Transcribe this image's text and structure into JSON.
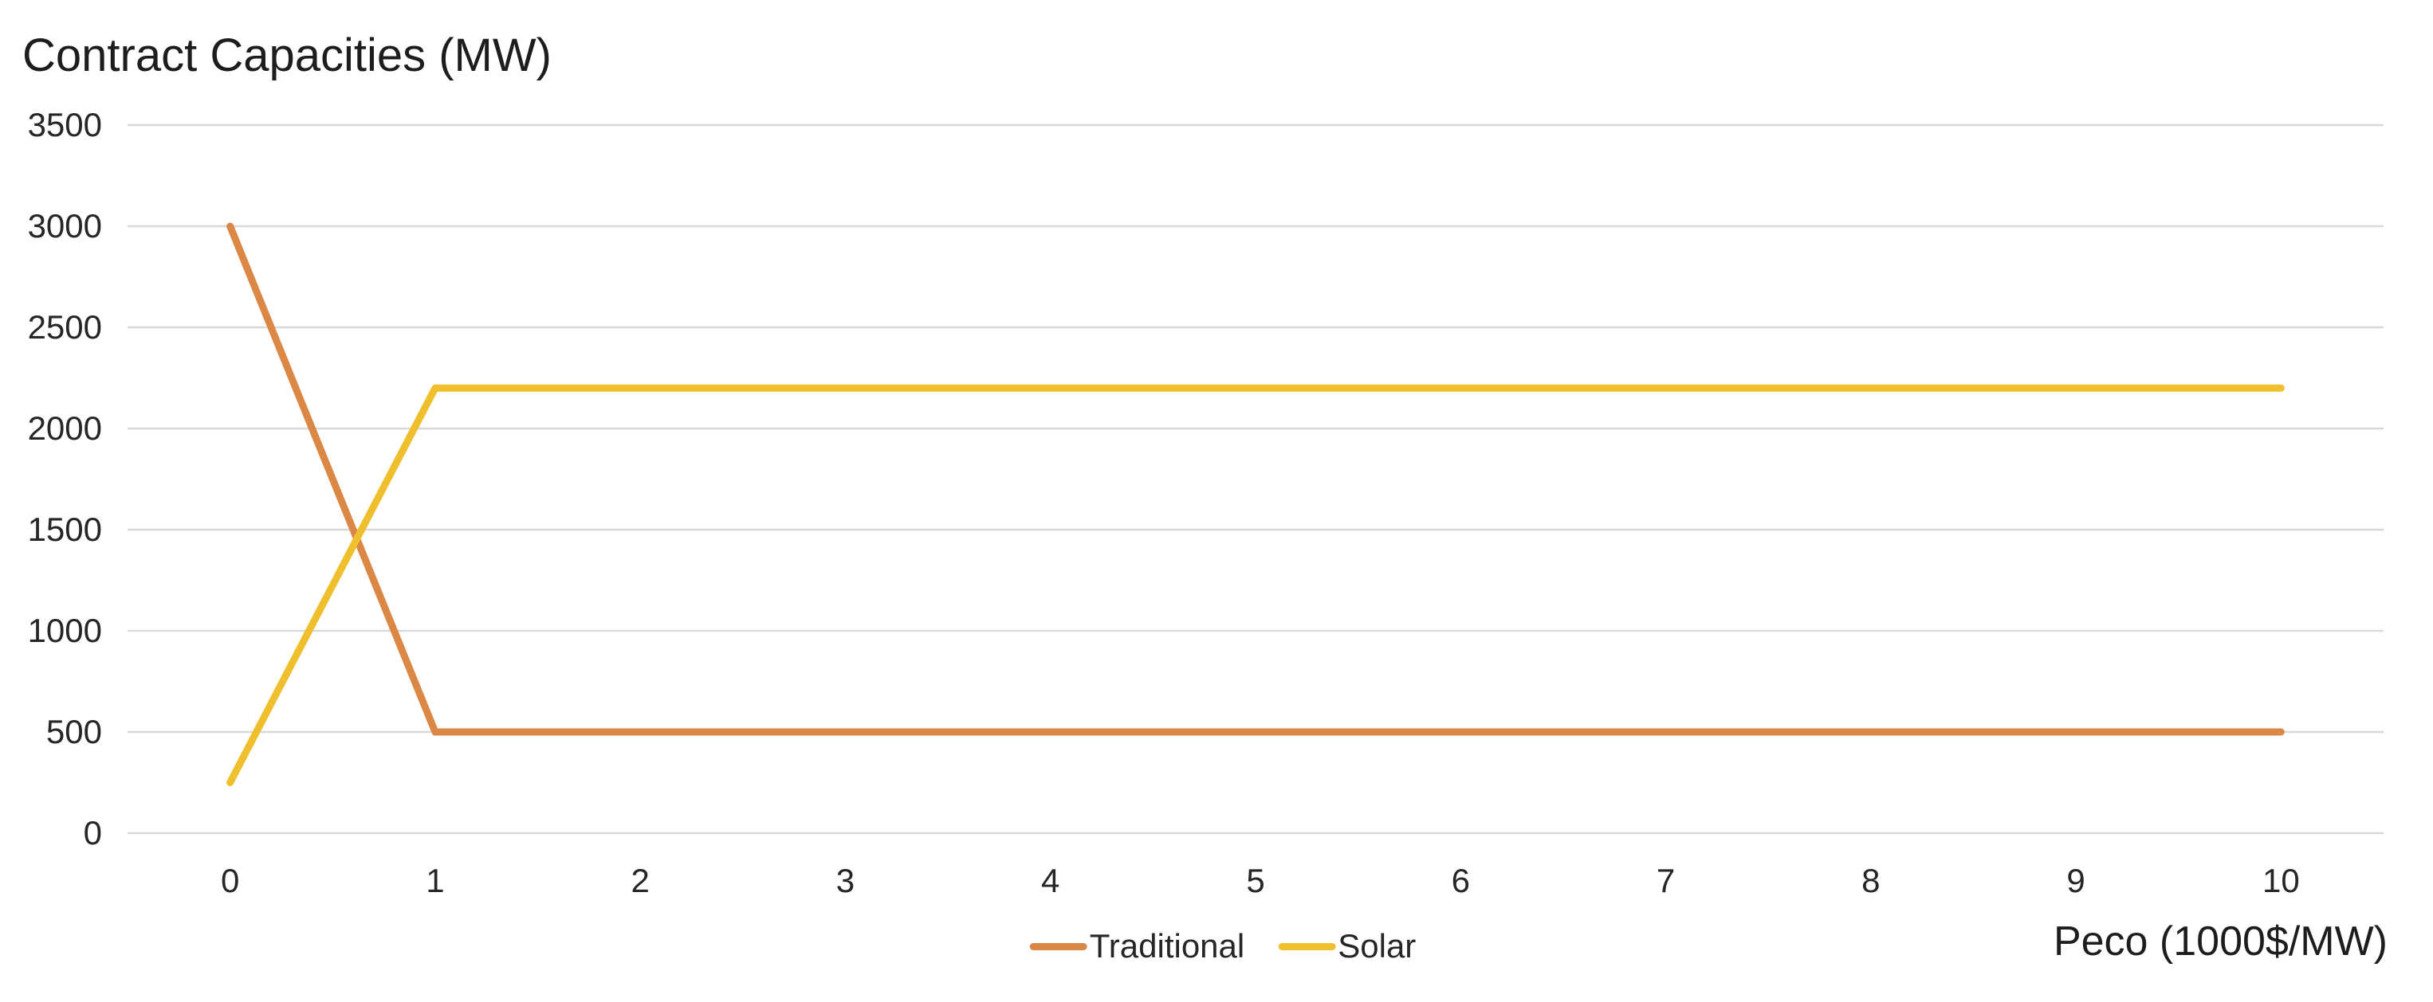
{
  "chart_data": {
    "type": "line",
    "title": "Contract Capacities (MW)",
    "xlabel": "Peco (1000$/MW)",
    "ylabel": "",
    "x": [
      0,
      1,
      2,
      3,
      4,
      5,
      6,
      7,
      8,
      9,
      10
    ],
    "series": [
      {
        "name": "Traditional",
        "color": "#DB8846",
        "values": [
          3000,
          500,
          500,
          500,
          500,
          500,
          500,
          500,
          500,
          500,
          500
        ]
      },
      {
        "name": "Solar",
        "color": "#EFBF2D",
        "values": [
          250,
          2200,
          2200,
          2200,
          2200,
          2200,
          2200,
          2200,
          2200,
          2200,
          2200
        ]
      }
    ],
    "ylim": [
      0,
      3500
    ],
    "yticks": [
      0,
      500,
      1000,
      1500,
      2000,
      2500,
      3000,
      3500
    ],
    "grid": "horizontal-only",
    "gridline_color": "#D9D9D9",
    "background_color": "#FFFFFF",
    "axis_text_color": "#262626",
    "legend_position": "bottom-center",
    "line_width": 9
  }
}
